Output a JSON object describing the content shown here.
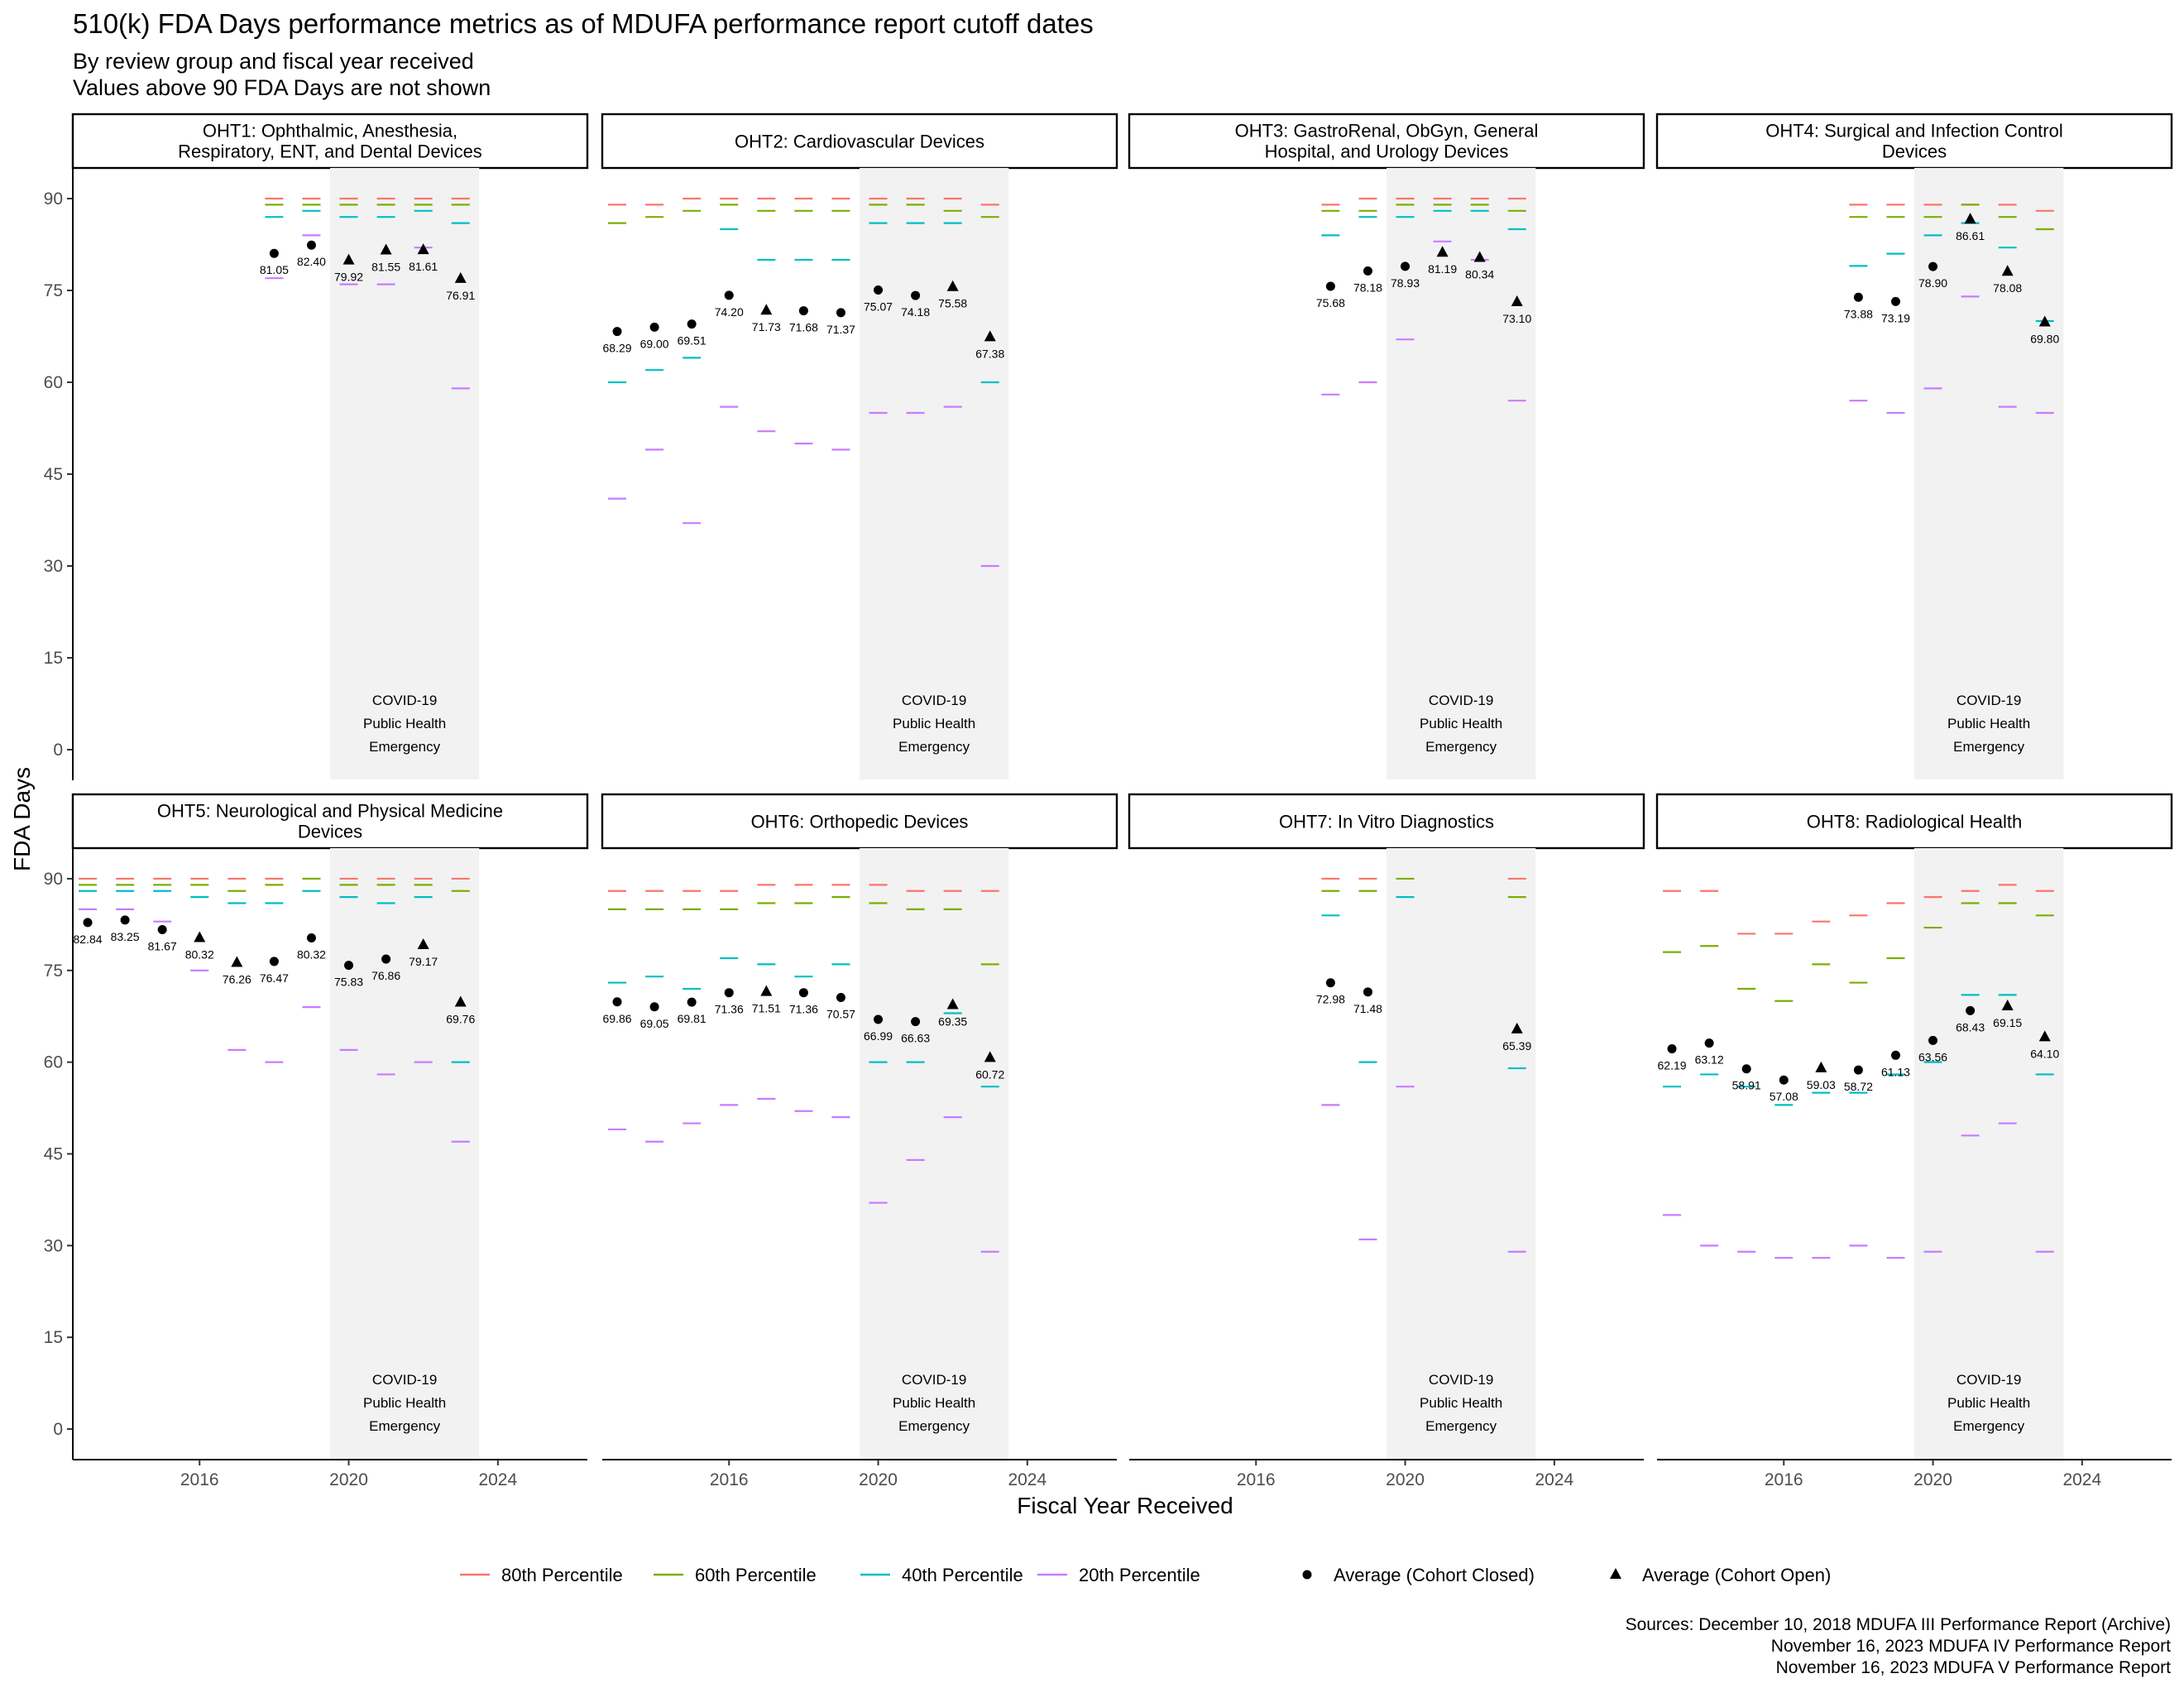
{
  "title": "510(k) FDA Days performance metrics as of MDUFA performance report cutoff dates",
  "subtitle_lines": [
    "By review group and fiscal year received",
    "Values above 90 FDA Days are not shown"
  ],
  "sources": [
    "Sources: December 10, 2018 MDUFA III Performance Report (Archive)",
    "November 16, 2023 MDUFA IV Performance Report",
    "November 16, 2023 MDUFA V Performance Report"
  ],
  "colors": {
    "p80": "#F8766D",
    "p60": "#7CAE00",
    "p40": "#00BFC4",
    "p20": "#C77CFF",
    "shade": "#f2f2f2",
    "avg": "#000000"
  },
  "chart_data": {
    "type": "scatter",
    "xlabel": "Fiscal Year Received",
    "ylabel": "FDA Days",
    "ylim": [
      -5,
      95
    ],
    "yticks": [
      0,
      15,
      30,
      45,
      60,
      75,
      90
    ],
    "xlim": [
      2012.6,
      2026.4
    ],
    "xticks": [
      2016,
      2020,
      2024
    ],
    "shaded_region": {
      "x": [
        2019.5,
        2023.5
      ],
      "label_lines": [
        "COVID-19",
        "Public Health",
        "Emergency"
      ]
    },
    "legend": {
      "position": "bottom",
      "items": [
        {
          "key": "p80",
          "label": "80th Percentile",
          "kind": "dash"
        },
        {
          "key": "p60",
          "label": "60th Percentile",
          "kind": "dash"
        },
        {
          "key": "p40",
          "label": "40th Percentile",
          "kind": "dash"
        },
        {
          "key": "p20",
          "label": "20th Percentile",
          "kind": "dash"
        },
        {
          "key": "closed",
          "label": "Average (Cohort Closed)",
          "kind": "circle"
        },
        {
          "key": "open",
          "label": "Average (Cohort Open)",
          "kind": "triangle"
        }
      ]
    },
    "panels": [
      {
        "title_lines": [
          "OHT1: Ophthalmic, Anesthesia,",
          "Respiratory, ENT, and Dental Devices"
        ],
        "years": [
          2018,
          2019,
          2020,
          2021,
          2022,
          2023
        ],
        "p80": [
          90,
          90,
          90,
          90,
          90,
          90
        ],
        "p60": [
          89,
          89,
          89,
          89,
          89,
          89
        ],
        "p40": [
          87,
          88,
          87,
          87,
          88,
          86
        ],
        "p20": [
          77,
          84,
          76,
          76,
          82,
          59
        ],
        "avg": [
          81.05,
          82.4,
          79.92,
          81.55,
          81.61,
          76.91
        ],
        "labels": [
          "81.05",
          "82.40",
          "79.92",
          "81.55",
          "81.61",
          "76.91"
        ],
        "open": [
          false,
          false,
          true,
          true,
          true,
          true
        ]
      },
      {
        "title_lines": [
          "OHT2: Cardiovascular Devices"
        ],
        "years": [
          2013,
          2014,
          2015,
          2016,
          2017,
          2018,
          2019,
          2020,
          2021,
          2022,
          2023
        ],
        "p80": [
          89,
          89,
          90,
          90,
          90,
          90,
          90,
          90,
          90,
          90,
          89
        ],
        "p60": [
          86,
          87,
          88,
          89,
          88,
          88,
          88,
          89,
          89,
          88,
          87
        ],
        "p40": [
          60,
          62,
          64,
          85,
          80,
          80,
          80,
          86,
          86,
          86,
          60
        ],
        "p20": [
          41,
          49,
          37,
          56,
          52,
          50,
          49,
          55,
          55,
          56,
          30
        ],
        "avg": [
          68.29,
          69.0,
          69.51,
          74.2,
          71.73,
          71.68,
          71.37,
          75.07,
          74.18,
          75.58,
          67.38
        ],
        "labels": [
          "68.29",
          "69.00",
          "69.51",
          "74.20",
          "71.73",
          "71.68",
          "71.37",
          "75.07",
          "74.18",
          "75.58",
          "67.38"
        ],
        "open": [
          false,
          false,
          false,
          false,
          true,
          false,
          false,
          false,
          false,
          true,
          true
        ]
      },
      {
        "title_lines": [
          "OHT3: GastroRenal, ObGyn, General",
          "Hospital, and Urology Devices"
        ],
        "years": [
          2018,
          2019,
          2020,
          2021,
          2022,
          2023
        ],
        "p80": [
          89,
          90,
          90,
          90,
          90,
          90
        ],
        "p60": [
          88,
          88,
          89,
          89,
          89,
          88
        ],
        "p40": [
          84,
          87,
          87,
          88,
          88,
          85
        ],
        "p20": [
          58,
          60,
          67,
          83,
          80,
          57
        ],
        "avg": [
          75.68,
          78.18,
          78.93,
          81.19,
          80.34,
          73.1
        ],
        "labels": [
          "75.68",
          "78.18",
          "78.93",
          "81.19",
          "80.34",
          "73.10"
        ],
        "open": [
          false,
          false,
          false,
          true,
          true,
          true
        ]
      },
      {
        "title_lines": [
          "OHT4: Surgical and Infection Control",
          "Devices"
        ],
        "years": [
          2018,
          2019,
          2020,
          2021,
          2022,
          2023
        ],
        "p80": [
          89,
          89,
          89,
          89,
          89,
          88
        ],
        "p60": [
          87,
          87,
          87,
          89,
          87,
          85
        ],
        "p40": [
          79,
          81,
          84,
          86,
          82,
          70
        ],
        "p20": [
          57,
          55,
          59,
          74,
          56,
          55
        ],
        "avg": [
          73.88,
          73.19,
          78.9,
          86.61,
          78.08,
          69.8
        ],
        "labels": [
          "73.88",
          "73.19",
          "78.90",
          "86.61",
          "78.08",
          "69.80"
        ],
        "open": [
          false,
          false,
          false,
          true,
          true,
          true
        ]
      },
      {
        "title_lines": [
          "OHT5: Neurological and Physical Medicine",
          "Devices"
        ],
        "years": [
          2013,
          2014,
          2015,
          2016,
          2017,
          2018,
          2019,
          2020,
          2021,
          2022,
          2023
        ],
        "p80": [
          90,
          90,
          90,
          90,
          90,
          90,
          90,
          90,
          90,
          90,
          90
        ],
        "p60": [
          89,
          89,
          89,
          89,
          88,
          89,
          90,
          89,
          89,
          89,
          88
        ],
        "p40": [
          88,
          88,
          88,
          87,
          86,
          86,
          88,
          87,
          86,
          87,
          60
        ],
        "p20": [
          85,
          85,
          83,
          75,
          62,
          60,
          69,
          62,
          58,
          60,
          47
        ],
        "avg": [
          82.84,
          83.25,
          81.67,
          80.32,
          76.26,
          76.47,
          80.32,
          75.83,
          76.86,
          79.17,
          69.76
        ],
        "labels": [
          "82.84",
          "83.25",
          "81.67",
          "80.32",
          "76.26",
          "76.47",
          "80.32",
          "75.83",
          "76.86",
          "79.17",
          "69.76"
        ],
        "open": [
          false,
          false,
          false,
          true,
          true,
          false,
          false,
          false,
          false,
          true,
          true
        ]
      },
      {
        "title_lines": [
          "OHT6: Orthopedic Devices"
        ],
        "years": [
          2013,
          2014,
          2015,
          2016,
          2017,
          2018,
          2019,
          2020,
          2021,
          2022,
          2023
        ],
        "p80": [
          88,
          88,
          88,
          88,
          89,
          89,
          89,
          89,
          88,
          88,
          88
        ],
        "p60": [
          85,
          85,
          85,
          85,
          86,
          86,
          87,
          86,
          85,
          85,
          76
        ],
        "p40": [
          73,
          74,
          72,
          77,
          76,
          74,
          76,
          60,
          60,
          68,
          56
        ],
        "p20": [
          49,
          47,
          50,
          53,
          54,
          52,
          51,
          37,
          44,
          51,
          29
        ],
        "avg": [
          69.86,
          69.05,
          69.81,
          71.36,
          71.51,
          71.36,
          70.57,
          66.99,
          66.63,
          69.35,
          60.72
        ],
        "labels": [
          "69.86",
          "69.05",
          "69.81",
          "71.36",
          "71.51",
          "71.36",
          "70.57",
          "66.99",
          "66.63",
          "69.35",
          "60.72"
        ],
        "open": [
          false,
          false,
          false,
          false,
          true,
          false,
          false,
          false,
          false,
          true,
          true
        ]
      },
      {
        "title_lines": [
          "OHT7: In Vitro Diagnostics"
        ],
        "years": [
          2018,
          2019,
          2020,
          2023
        ],
        "p80": [
          90,
          90,
          null,
          90
        ],
        "p60": [
          88,
          88,
          90,
          87
        ],
        "p40": [
          84,
          60,
          87,
          59
        ],
        "p20": [
          53,
          31,
          56,
          29
        ],
        "avg": [
          72.98,
          71.48,
          null,
          65.39
        ],
        "labels": [
          "72.98",
          "71.48",
          "",
          "65.39"
        ],
        "open": [
          false,
          false,
          false,
          true
        ]
      },
      {
        "title_lines": [
          "OHT8: Radiological Health"
        ],
        "years": [
          2013,
          2014,
          2015,
          2016,
          2017,
          2018,
          2019,
          2020,
          2021,
          2022,
          2023
        ],
        "p80": [
          88,
          88,
          81,
          81,
          83,
          84,
          86,
          87,
          88,
          89,
          88
        ],
        "p60": [
          78,
          79,
          72,
          70,
          76,
          73,
          77,
          82,
          86,
          86,
          84
        ],
        "p40": [
          56,
          58,
          56,
          53,
          55,
          55,
          58,
          60,
          71,
          71,
          58
        ],
        "p20": [
          35,
          30,
          29,
          28,
          28,
          30,
          28,
          29,
          48,
          50,
          29
        ],
        "avg": [
          62.19,
          63.12,
          58.91,
          57.08,
          59.03,
          58.72,
          61.13,
          63.56,
          68.43,
          69.15,
          64.1
        ],
        "labels": [
          "62.19",
          "63.12",
          "58.91",
          "57.08",
          "59.03",
          "58.72",
          "61.13",
          "63.56",
          "68.43",
          "69.15",
          "64.10"
        ],
        "open": [
          false,
          false,
          false,
          false,
          true,
          false,
          false,
          false,
          false,
          true,
          true
        ]
      }
    ]
  }
}
